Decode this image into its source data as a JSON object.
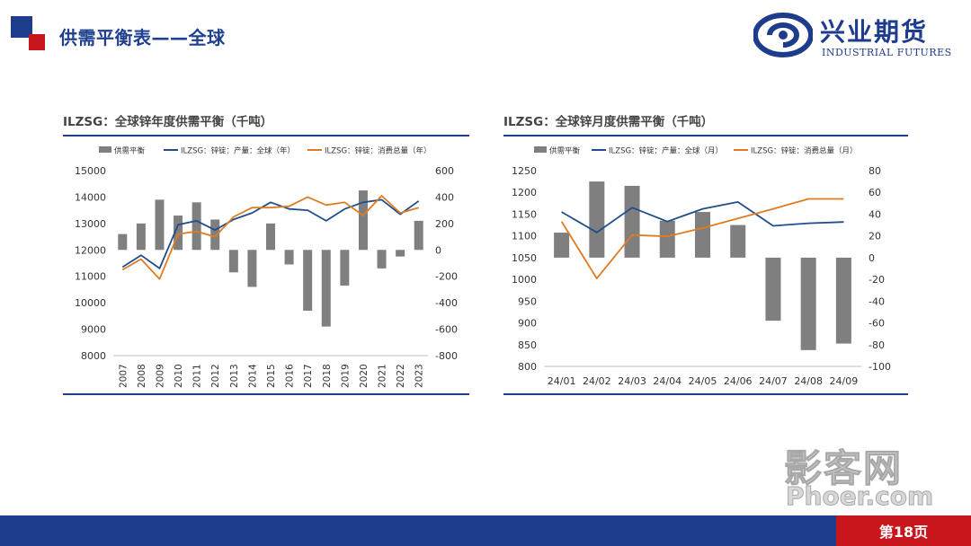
{
  "header": {
    "title": "供需平衡表——全球"
  },
  "brand": {
    "name_cn": "兴业期货",
    "name_en": "INDUSTRIAL FUTURES",
    "color": "#1e3c8c",
    "accent": "#c8161d"
  },
  "footer": {
    "page_label": "第18页"
  },
  "watermark": {
    "cn": "影客网",
    "en": "Phoer.com"
  },
  "chart_data": [
    {
      "type": "bar+line",
      "title": "ILZSG：全球锌年度供需平衡（千吨）",
      "categories": [
        "2007",
        "2008",
        "2009",
        "2010",
        "2011",
        "2012",
        "2013",
        "2014",
        "2015",
        "2016",
        "2017",
        "2018",
        "2019",
        "2020",
        "2021",
        "2022",
        "2023"
      ],
      "series": [
        {
          "name": "供需平衡",
          "type": "bar",
          "axis": "right",
          "color": "#7f7f7f",
          "values": [
            120,
            200,
            380,
            260,
            360,
            230,
            -170,
            -280,
            200,
            -110,
            -460,
            -580,
            -270,
            450,
            -140,
            -50,
            220
          ]
        },
        {
          "name": "ILZSG：锌锭：产量：全球（年）",
          "type": "line",
          "axis": "left",
          "color": "#1f4e8c",
          "values": [
            11350,
            11800,
            11300,
            12950,
            13100,
            12750,
            13150,
            13400,
            13800,
            13550,
            13500,
            13100,
            13550,
            13800,
            13900,
            13350,
            13850
          ]
        },
        {
          "name": "ILZSG：锌锭：消费总量（年）",
          "type": "line",
          "axis": "left",
          "color": "#e07b22",
          "values": [
            11250,
            11650,
            10900,
            12600,
            12700,
            12500,
            13250,
            13600,
            13600,
            13650,
            14000,
            13700,
            13800,
            13300,
            14050,
            13400,
            13600
          ]
        }
      ],
      "ylim_left": [
        8000,
        15000
      ],
      "yticks_left": [
        8000,
        9000,
        10000,
        11000,
        12000,
        13000,
        14000,
        15000
      ],
      "ylim_right": [
        -800,
        600
      ],
      "yticks_right": [
        -800,
        -600,
        -400,
        -200,
        0,
        200,
        400,
        600
      ],
      "legend_position": "top"
    },
    {
      "type": "bar+line",
      "title": "ILZSG：全球锌月度供需平衡（千吨）",
      "categories": [
        "24/01",
        "24/02",
        "24/03",
        "24/04",
        "24/05",
        "24/06",
        "24/07",
        "24/08",
        "24/09"
      ],
      "series": [
        {
          "name": "供需平衡",
          "type": "bar",
          "axis": "right",
          "color": "#7f7f7f",
          "values": [
            23,
            70,
            66,
            34,
            42,
            30,
            -58,
            -85,
            -79
          ]
        },
        {
          "name": "ILZSG：锌锭：产量：全球（月）",
          "type": "line",
          "axis": "left",
          "color": "#1f4e8c",
          "values": [
            1155,
            1108,
            1165,
            1133,
            1162,
            1178,
            1123,
            1129,
            1132
          ]
        },
        {
          "name": "ILZSG：锌锭：消费总量（月）",
          "type": "line",
          "axis": "left",
          "color": "#e07b22",
          "values": [
            1133,
            1002,
            1102,
            1099,
            1118,
            1140,
            1162,
            1185,
            1185
          ]
        }
      ],
      "ylim_left": [
        800,
        1250
      ],
      "yticks_left": [
        800,
        850,
        900,
        950,
        1000,
        1050,
        1100,
        1150,
        1200,
        1250
      ],
      "ylim_right": [
        -100,
        80
      ],
      "yticks_right": [
        -100,
        -80,
        -60,
        -40,
        -20,
        0,
        20,
        40,
        60,
        80
      ],
      "legend_position": "top"
    }
  ]
}
